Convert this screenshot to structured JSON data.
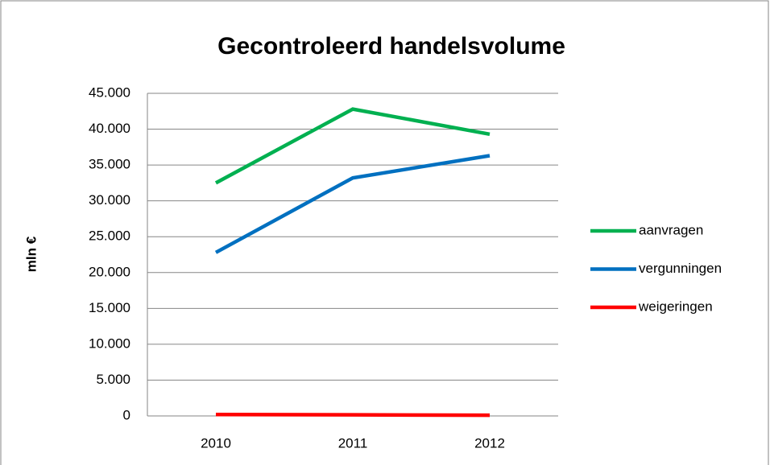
{
  "chart_data": {
    "type": "line",
    "title": "Gecontroleerd handelsvolume",
    "y_label": "mln €",
    "categories": [
      "2010",
      "2011",
      "2012"
    ],
    "series": [
      {
        "name": "aanvragen",
        "color": "#00b050",
        "values": [
          32500,
          42800,
          39300
        ]
      },
      {
        "name": "vergunningen",
        "color": "#0070c0",
        "values": [
          22800,
          33200,
          36300
        ]
      },
      {
        "name": "weigeringen",
        "color": "#ff0000",
        "values": [
          200,
          150,
          100
        ]
      }
    ],
    "ylim": [
      0,
      45000
    ],
    "yticks": [
      0,
      {
        "value": 5000,
        "label": "5.000"
      },
      {
        "value": 10000,
        "label": "10.000"
      },
      {
        "value": 15000,
        "label": "15.000"
      },
      {
        "value": 20000,
        "label": "20.000"
      },
      {
        "value": 25000,
        "label": "25.000"
      },
      {
        "value": 30000,
        "label": "30.000"
      },
      {
        "value": 35000,
        "label": "35.000"
      },
      {
        "value": 40000,
        "label": "40.000"
      },
      {
        "value": 45000,
        "label": "45.000"
      }
    ],
    "grid": true,
    "legend": "right"
  }
}
